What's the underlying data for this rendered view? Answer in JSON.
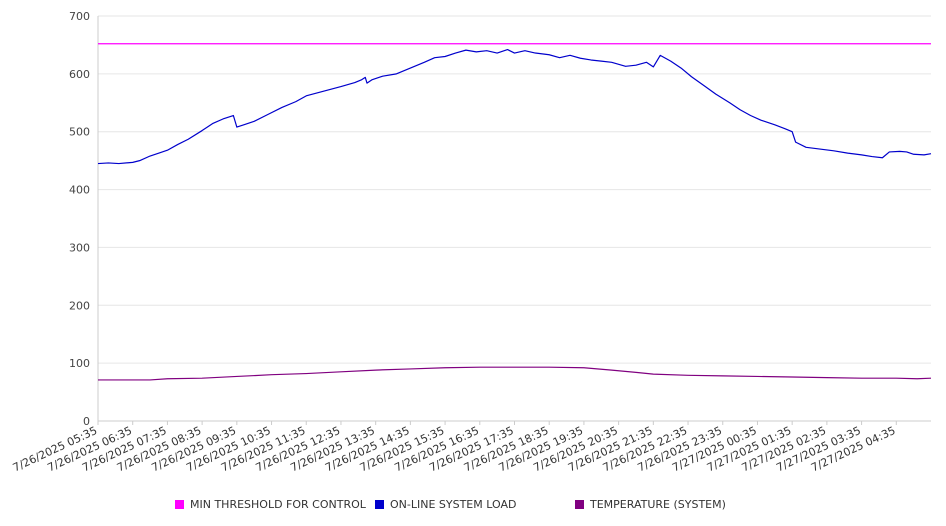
{
  "chart_data": {
    "type": "line",
    "ylim": [
      0,
      700
    ],
    "yticks": [
      0,
      100,
      200,
      300,
      400,
      500,
      600,
      700
    ],
    "grid": true,
    "legend_position": "bottom",
    "x_tick_labels": [
      "7/26/2025 05:35",
      "7/26/2025 06:35",
      "7/26/2025 07:35",
      "7/26/2025 08:35",
      "7/26/2025 09:35",
      "7/26/2025 10:35",
      "7/26/2025 11:35",
      "7/26/2025 12:35",
      "7/26/2025 13:35",
      "7/26/2025 14:35",
      "7/26/2025 15:35",
      "7/26/2025 16:35",
      "7/26/2025 17:35",
      "7/26/2025 18:35",
      "7/26/2025 19:35",
      "7/26/2025 20:35",
      "7/26/2025 21:35",
      "7/26/2025 22:35",
      "7/26/2025 23:35",
      "7/27/2025 00:35",
      "7/27/2025 01:35",
      "7/27/2025 02:35",
      "7/27/2025 03:35",
      "7/27/2025 04:35"
    ],
    "x_start": "7/26/2025 05:35",
    "x_end": "7/27/2025 05:35",
    "series": [
      {
        "name": "MIN THRESHOLD FOR CONTROL",
        "color": "#ff00ff",
        "points": [
          [
            0,
            652
          ],
          [
            24,
            652
          ]
        ]
      },
      {
        "name": "ON-LINE SYSTEM LOAD",
        "color": "#0000cc",
        "points": [
          [
            0,
            445
          ],
          [
            0.3,
            446
          ],
          [
            0.6,
            445
          ],
          [
            1.0,
            447
          ],
          [
            1.2,
            450
          ],
          [
            1.5,
            458
          ],
          [
            1.8,
            464
          ],
          [
            2.0,
            468
          ],
          [
            2.3,
            478
          ],
          [
            2.6,
            487
          ],
          [
            3.0,
            502
          ],
          [
            3.3,
            514
          ],
          [
            3.6,
            522
          ],
          [
            3.9,
            528
          ],
          [
            4.0,
            508
          ],
          [
            4.2,
            512
          ],
          [
            4.5,
            518
          ],
          [
            4.9,
            530
          ],
          [
            5.3,
            542
          ],
          [
            5.7,
            552
          ],
          [
            6.0,
            562
          ],
          [
            6.5,
            570
          ],
          [
            7.0,
            578
          ],
          [
            7.4,
            585
          ],
          [
            7.6,
            590
          ],
          [
            7.7,
            594
          ],
          [
            7.75,
            584
          ],
          [
            7.9,
            590
          ],
          [
            8.2,
            596
          ],
          [
            8.6,
            600
          ],
          [
            9.0,
            610
          ],
          [
            9.4,
            620
          ],
          [
            9.7,
            628
          ],
          [
            10.0,
            630
          ],
          [
            10.3,
            636
          ],
          [
            10.6,
            641
          ],
          [
            10.9,
            638
          ],
          [
            11.2,
            640
          ],
          [
            11.5,
            636
          ],
          [
            11.8,
            642
          ],
          [
            12.0,
            636
          ],
          [
            12.3,
            640
          ],
          [
            12.6,
            636
          ],
          [
            13.0,
            633
          ],
          [
            13.3,
            628
          ],
          [
            13.6,
            632
          ],
          [
            13.9,
            627
          ],
          [
            14.2,
            624
          ],
          [
            14.5,
            622
          ],
          [
            14.8,
            620
          ],
          [
            15.2,
            613
          ],
          [
            15.5,
            615
          ],
          [
            15.8,
            620
          ],
          [
            16.0,
            612
          ],
          [
            16.2,
            632
          ],
          [
            16.5,
            622
          ],
          [
            16.8,
            610
          ],
          [
            17.1,
            595
          ],
          [
            17.5,
            578
          ],
          [
            17.8,
            565
          ],
          [
            18.2,
            550
          ],
          [
            18.5,
            538
          ],
          [
            18.8,
            528
          ],
          [
            19.1,
            520
          ],
          [
            19.5,
            512
          ],
          [
            19.8,
            505
          ],
          [
            20.0,
            500
          ],
          [
            20.1,
            482
          ],
          [
            20.4,
            473
          ],
          [
            20.8,
            470
          ],
          [
            21.2,
            467
          ],
          [
            21.6,
            463
          ],
          [
            22.0,
            460
          ],
          [
            22.3,
            457
          ],
          [
            22.6,
            455
          ],
          [
            22.8,
            465
          ],
          [
            23.1,
            466
          ],
          [
            23.3,
            465
          ],
          [
            23.5,
            461
          ],
          [
            23.8,
            460
          ],
          [
            24,
            462
          ]
        ]
      },
      {
        "name": "TEMPERATURE (SYSTEM)",
        "color": "#800080",
        "points": [
          [
            0,
            71
          ],
          [
            1.5,
            71
          ],
          [
            2.0,
            73
          ],
          [
            3.0,
            74
          ],
          [
            4.0,
            77
          ],
          [
            5.0,
            80
          ],
          [
            6.0,
            82
          ],
          [
            7.0,
            85
          ],
          [
            8.0,
            88
          ],
          [
            9.0,
            90
          ],
          [
            10.0,
            92
          ],
          [
            11.0,
            93
          ],
          [
            12.0,
            93
          ],
          [
            13.0,
            93
          ],
          [
            14.0,
            92
          ],
          [
            14.8,
            88
          ],
          [
            15.5,
            84
          ],
          [
            16.0,
            81
          ],
          [
            17.0,
            79
          ],
          [
            18.0,
            78
          ],
          [
            19.0,
            77
          ],
          [
            20.0,
            76
          ],
          [
            21.0,
            75
          ],
          [
            22.0,
            74
          ],
          [
            23.0,
            74
          ],
          [
            23.6,
            73
          ],
          [
            24,
            74
          ]
        ]
      }
    ]
  }
}
